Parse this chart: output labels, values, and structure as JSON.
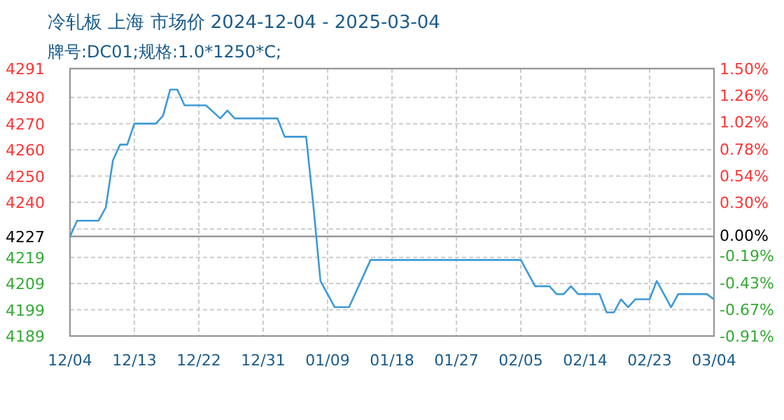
{
  "chart_data": {
    "type": "line",
    "title": "冷轧板 上海 市场价 2024-12-04 - 2025-03-04",
    "subtitle": "牌号:DC01;规格:1.0*1250*C;",
    "x": [
      "2024-12-04",
      "2024-12-05",
      "2024-12-08",
      "2024-12-09",
      "2024-12-10",
      "2024-12-11",
      "2024-12-12",
      "2024-12-13",
      "2024-12-16",
      "2024-12-17",
      "2024-12-18",
      "2024-12-19",
      "2024-12-20",
      "2024-12-23",
      "2024-12-25",
      "2024-12-26",
      "2024-12-27",
      "2025-01-02",
      "2025-01-03",
      "2025-01-06",
      "2025-01-07",
      "2025-01-08",
      "2025-01-10",
      "2025-01-12",
      "2025-01-13",
      "2025-01-15",
      "2025-02-05",
      "2025-02-07",
      "2025-02-09",
      "2025-02-10",
      "2025-02-11",
      "2025-02-12",
      "2025-02-13",
      "2025-02-16",
      "2025-02-17",
      "2025-02-18",
      "2025-02-19",
      "2025-02-20",
      "2025-02-21",
      "2025-02-23",
      "2025-02-24",
      "2025-02-26",
      "2025-02-27",
      "2025-03-03",
      "2025-03-04"
    ],
    "series": [
      {
        "color": "#3d9ad8",
        "values": [
          4227,
          4233,
          4233,
          4238,
          4256,
          4262,
          4262,
          4270,
          4270,
          4273,
          4283,
          4283,
          4277,
          4277,
          4272,
          4275,
          4272,
          4272,
          4265,
          4265,
          4239,
          4210,
          4200,
          4200,
          4206,
          4218,
          4218,
          4208,
          4208,
          4205,
          4205,
          4208,
          4205,
          4205,
          4198,
          4198,
          4203,
          4200,
          4203,
          4203,
          4210,
          4200,
          4205,
          4205,
          4203
        ]
      }
    ],
    "xlim": [
      "2024-12-04",
      "2025-03-04"
    ],
    "xticks": [
      {
        "value": "2024-12-04",
        "label": "12/04"
      },
      {
        "value": "2024-12-13",
        "label": "12/13"
      },
      {
        "value": "2024-12-22",
        "label": "12/22"
      },
      {
        "value": "2024-12-31",
        "label": "12/31"
      },
      {
        "value": "2025-01-09",
        "label": "01/09"
      },
      {
        "value": "2025-01-18",
        "label": "01/18"
      },
      {
        "value": "2025-01-27",
        "label": "01/27"
      },
      {
        "value": "2025-02-05",
        "label": "02/05"
      },
      {
        "value": "2025-02-14",
        "label": "02/14"
      },
      {
        "value": "2025-02-23",
        "label": "02/23"
      },
      {
        "value": "2025-03-04",
        "label": "03/04"
      }
    ],
    "ylim": [
      4189,
      4291
    ],
    "yticks": [
      4189,
      4199,
      4209,
      4219,
      {
        "value": 4229.8,
        "label": null
      },
      4240,
      4250,
      4260,
      4270,
      4280,
      4291
    ],
    "y2lim": [
      -0.91,
      1.5
    ],
    "y2ticks": [
      {
        "value": -0.91,
        "label": "-0.91%"
      },
      {
        "value": -0.669,
        "label": "-0.67%"
      },
      {
        "value": -0.428,
        "label": "-0.43%"
      },
      {
        "value": -0.187,
        "label": "-0.19%"
      },
      {
        "value": 0,
        "label": "0.00%"
      },
      {
        "value": 0.054,
        "label": null
      },
      {
        "value": 0.295,
        "label": "0.30%"
      },
      {
        "value": 0.536,
        "label": "0.54%"
      },
      {
        "value": 0.777,
        "label": "0.78%"
      },
      {
        "value": 1.018,
        "label": "1.02%"
      },
      {
        "value": 1.259,
        "label": "1.26%"
      },
      {
        "value": 1.5,
        "label": "1.50%"
      }
    ],
    "ref_lines": [
      {
        "axis": "y",
        "value": 4227,
        "label": "4227",
        "color": "#999999"
      }
    ],
    "grid": true,
    "marker": "none",
    "line_style": "solid"
  }
}
